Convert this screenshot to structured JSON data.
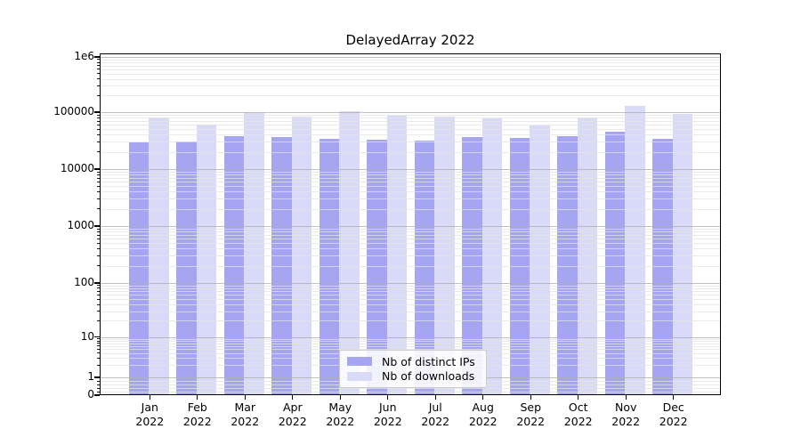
{
  "title": "DelayedArray 2022",
  "chart_data": {
    "type": "bar",
    "title": "DelayedArray 2022",
    "x_months": [
      "Jan",
      "Feb",
      "Mar",
      "Apr",
      "May",
      "Jun",
      "Jul",
      "Aug",
      "Sep",
      "Oct",
      "Nov",
      "Dec"
    ],
    "x_year": "2022",
    "series": [
      {
        "name": "Nb of distinct IPs",
        "color": "#a5a5f2",
        "values": [
          29000,
          30000,
          38000,
          36000,
          34000,
          33000,
          32000,
          36000,
          35000,
          38000,
          45000,
          34000
        ]
      },
      {
        "name": "Nb of downloads",
        "color": "#d9d9f8",
        "values": [
          80000,
          60000,
          97000,
          84000,
          103000,
          87000,
          85000,
          79000,
          59000,
          80000,
          131000,
          93000
        ]
      }
    ],
    "yscale": "symlog",
    "ylim": [
      0,
      1000000
    ],
    "y_ticks": [
      {
        "label": "1e6",
        "value": 1000000
      },
      {
        "label": "100000",
        "value": 100000
      },
      {
        "label": "10000",
        "value": 10000
      },
      {
        "label": "1000",
        "value": 1000
      },
      {
        "label": "100",
        "value": 100
      },
      {
        "label": "10",
        "value": 10
      },
      {
        "label": "1",
        "value": 1
      },
      {
        "label": "0",
        "value": 0
      }
    ],
    "grid": true,
    "legend_position": "lower center"
  },
  "colors": {
    "major_grid": "#b0b0b0",
    "minor_grid": "#e3e3e3",
    "spine": "#000000"
  }
}
